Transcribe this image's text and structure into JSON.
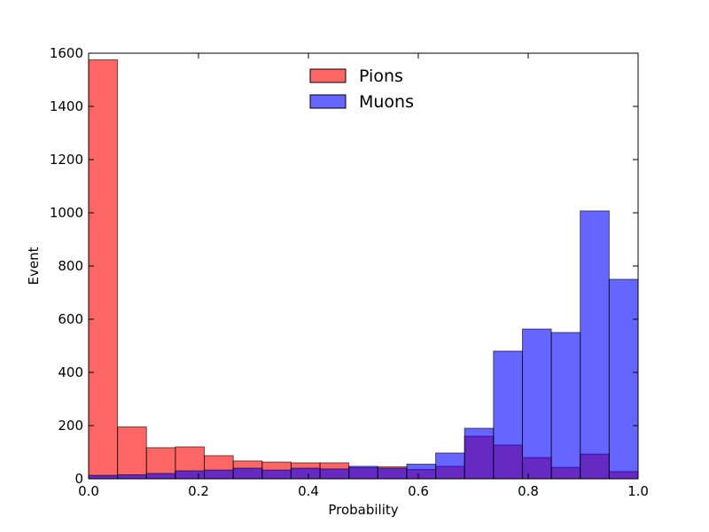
{
  "chart_data": {
    "type": "bar",
    "subtype": "overlapping histogram",
    "title": "",
    "xlabel": "Probability",
    "ylabel": "Event",
    "xlim": [
      0.0,
      1.0
    ],
    "ylim": [
      0,
      1600
    ],
    "xticks": [
      "0.0",
      "0.2",
      "0.4",
      "0.6",
      "0.8",
      "1.0"
    ],
    "yticks": [
      "0",
      "200",
      "400",
      "600",
      "800",
      "1000",
      "1200",
      "1400",
      "1600"
    ],
    "bin_edges": [
      0.0,
      0.0526,
      0.1053,
      0.1579,
      0.2105,
      0.2632,
      0.3158,
      0.3684,
      0.4211,
      0.4737,
      0.5263,
      0.5789,
      0.6316,
      0.6842,
      0.7368,
      0.7895,
      0.8421,
      0.8947,
      0.9474,
      1.0
    ],
    "series": [
      {
        "name": "Pions",
        "color": "#ff0000",
        "alpha": 0.6,
        "values": [
          1575,
          195,
          117,
          120,
          87,
          67,
          63,
          60,
          60,
          42,
          45,
          35,
          47,
          160,
          127,
          80,
          43,
          93,
          27
        ]
      },
      {
        "name": "Muons",
        "color": "#0000ff",
        "alpha": 0.6,
        "values": [
          13,
          15,
          20,
          30,
          33,
          40,
          33,
          40,
          37,
          47,
          40,
          55,
          97,
          190,
          480,
          563,
          550,
          1007,
          750
        ]
      }
    ],
    "grid": false,
    "legend": {
      "position": "top-center",
      "entries": [
        "Pions",
        "Muons"
      ]
    }
  }
}
